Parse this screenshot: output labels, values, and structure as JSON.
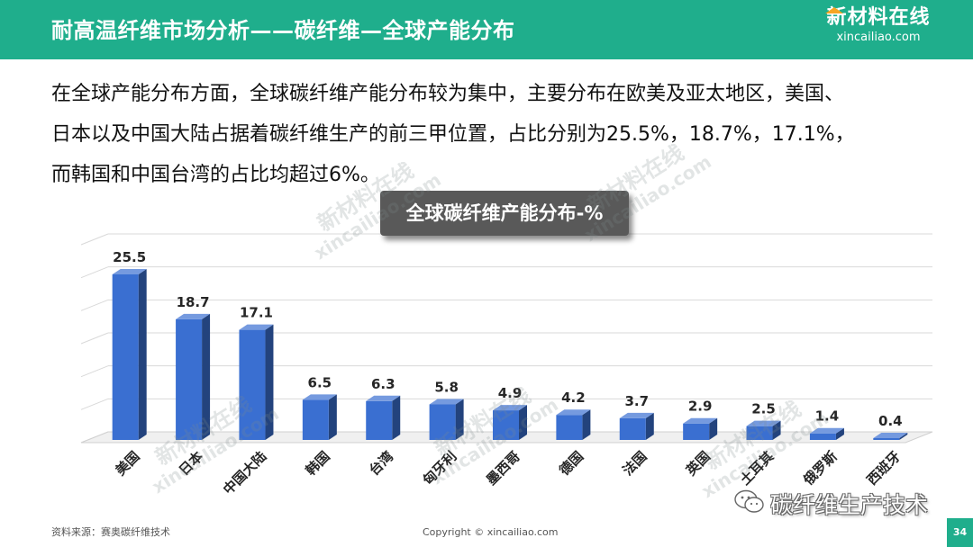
{
  "header": {
    "title": "耐高温纤维市场分析——碳纤维—全球产能分布",
    "logo_cn": "新材料在线",
    "logo_en": "xincailiao.com"
  },
  "intro_lines": [
    "在全球产能分布方面，全球碳纤维产能分布较为集中，主要分布在欧美及亚太地区，美国、",
    "日本以及中国大陆占据着碳纤维生产的前三甲位置，占比分别为25.5%，18.7%，17.1%，",
    "而韩国和中国台湾的占比均超过6%。"
  ],
  "chart_data": {
    "type": "bar",
    "title": "全球碳纤维产能分布-%",
    "categories": [
      "美国",
      "日本",
      "中国大陆",
      "韩国",
      "台湾",
      "匈牙利",
      "墨西哥",
      "德国",
      "法国",
      "英国",
      "土耳其",
      "俄罗斯",
      "西班牙"
    ],
    "values": [
      25.5,
      18.7,
      17.1,
      6.5,
      6.3,
      5.8,
      4.9,
      4.2,
      3.7,
      2.9,
      2.5,
      1.4,
      0.4
    ],
    "value_labels": [
      "25.5",
      "18.7",
      "17.1",
      "6.5",
      "6.3",
      "5.8",
      "4.9",
      "4.2",
      "3.7",
      "2.9",
      "2.5",
      "1.4",
      "0.4"
    ],
    "ylim": [
      0,
      30
    ],
    "xlabel": "",
    "ylabel": "",
    "grid": true,
    "bar_color": "#3a6fd1"
  },
  "watermarks": [
    {
      "cn": "新材料在线",
      "en": "xincailiao.com"
    },
    {
      "cn": "新材料在线",
      "en": "xincailiao.com"
    },
    {
      "cn": "新材料在线",
      "en": "xincailiao.com"
    },
    {
      "cn": "新材料在线",
      "en": "xincailiao.com"
    },
    {
      "cn": "新材料在线",
      "en": "xincailiao.com"
    }
  ],
  "wechat": {
    "label": "碳纤维生产技术"
  },
  "footer": {
    "source": "资料来源：赛奥碳纤维技术",
    "copyright": "Copyright © xincailiao.com",
    "page_number": "34"
  },
  "colors": {
    "accent": "#1fae8c",
    "title_box": "#595959",
    "logo_roof": "#f5a623"
  }
}
